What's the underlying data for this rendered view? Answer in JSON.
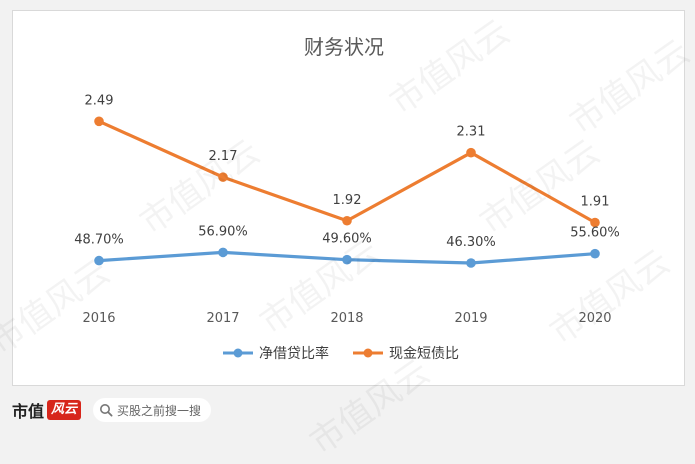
{
  "chart_data": {
    "type": "line",
    "title": "财务状况",
    "categories": [
      "2016",
      "2017",
      "2018",
      "2019",
      "2020"
    ],
    "series": [
      {
        "name": "净借贷比率",
        "values": [
          48.7,
          56.9,
          49.6,
          46.3,
          55.6
        ],
        "labels": [
          "48.70%",
          "56.90%",
          "49.60%",
          "46.30%",
          "55.60%"
        ],
        "color": "#5b9bd5"
      },
      {
        "name": "现金短债比",
        "values": [
          2.49,
          2.17,
          1.92,
          2.31,
          1.91
        ],
        "labels": [
          "2.49",
          "2.17",
          "1.92",
          "2.31",
          "1.91"
        ],
        "color": "#ed7d31"
      }
    ],
    "legend_position": "bottom",
    "grid": false
  },
  "footer": {
    "brand_main": "市值",
    "brand_badge": "风云",
    "search_text": "买股之前搜一搜",
    "search_icon": "search-icon"
  },
  "watermark_text": "市值风云"
}
